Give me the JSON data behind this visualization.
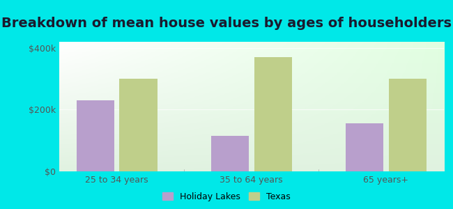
{
  "title": "Breakdown of mean house values by ages of householders",
  "categories": [
    "25 to 34 years",
    "35 to 64 years",
    "65 years+"
  ],
  "holiday_lakes": [
    230000,
    115000,
    155000
  ],
  "texas": [
    300000,
    370000,
    300000
  ],
  "bar_color_hl": "#b89fcc",
  "bar_color_tx": "#bfcf8a",
  "background_color": "#00e8e8",
  "ylabel_ticks": [
    0,
    200000,
    400000
  ],
  "ylabel_labels": [
    "$0",
    "$200k",
    "$400k"
  ],
  "ylim": [
    0,
    420000
  ],
  "legend_hl": "Holiday Lakes",
  "legend_tx": "Texas",
  "title_fontsize": 14,
  "tick_fontsize": 9,
  "legend_fontsize": 9,
  "bar_width": 0.28,
  "title_color": "#1a1a2e"
}
